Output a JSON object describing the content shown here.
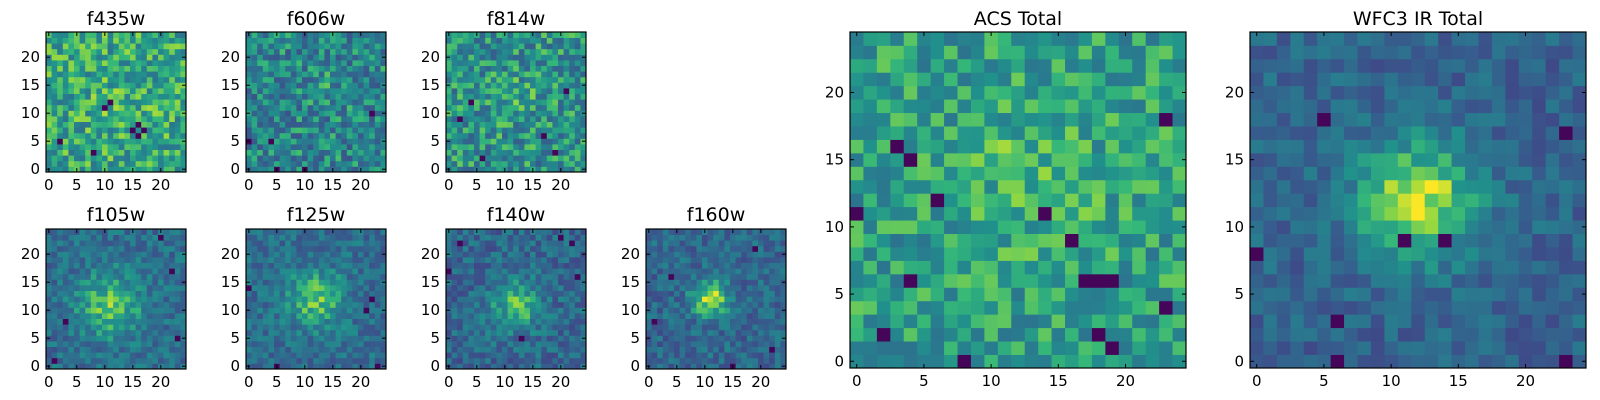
{
  "figure": {
    "description_note": ""
  },
  "chart_data": [
    {
      "type": "heatmap",
      "title": "f435w",
      "grid": [
        25,
        25
      ],
      "colormap": "viridis",
      "xlim": [
        0,
        24
      ],
      "ylim": [
        0,
        24
      ],
      "x_ticks": [
        "0",
        "5",
        "10",
        "15",
        "20"
      ],
      "y_ticks": [
        "0",
        "5",
        "10",
        "15",
        "20"
      ],
      "seed": 11,
      "blob": {
        "cx": 13,
        "cy": 12,
        "sigma": 4,
        "amp": 0.05
      },
      "noise": 0.42,
      "base": 0.68,
      "dark_cells": [
        [
          10,
          11
        ],
        [
          11,
          12
        ],
        [
          15,
          7
        ],
        [
          16,
          8
        ],
        [
          16,
          6
        ],
        [
          17,
          7
        ],
        [
          8,
          3
        ],
        [
          2,
          5
        ]
      ]
    },
    {
      "type": "heatmap",
      "title": "f606w",
      "grid": [
        25,
        25
      ],
      "colormap": "viridis",
      "xlim": [
        0,
        24
      ],
      "ylim": [
        0,
        24
      ],
      "x_ticks": [
        "0",
        "5",
        "10",
        "15",
        "20"
      ],
      "y_ticks": [
        "0",
        "5",
        "10",
        "15",
        "20"
      ],
      "seed": 23,
      "blob": {
        "cx": 13,
        "cy": 14,
        "sigma": 2,
        "amp": 0.1
      },
      "noise": 0.45,
      "base": 0.55,
      "dark_cells": [
        [
          5,
          0
        ],
        [
          10,
          0
        ],
        [
          4,
          5
        ],
        [
          22,
          10
        ],
        [
          0,
          5
        ]
      ]
    },
    {
      "type": "heatmap",
      "title": "f814w",
      "grid": [
        25,
        25
      ],
      "colormap": "viridis",
      "xlim": [
        0,
        24
      ],
      "ylim": [
        0,
        24
      ],
      "x_ticks": [
        "0",
        "5",
        "10",
        "15",
        "20"
      ],
      "y_ticks": [
        "0",
        "5",
        "10",
        "15",
        "20"
      ],
      "seed": 37,
      "blob": {
        "cx": 12,
        "cy": 13,
        "sigma": 3,
        "amp": 0.08
      },
      "noise": 0.45,
      "base": 0.6,
      "dark_cells": [
        [
          4,
          12
        ],
        [
          21,
          14
        ],
        [
          17,
          6
        ],
        [
          6,
          2
        ],
        [
          2,
          9
        ],
        [
          19,
          3
        ]
      ]
    },
    {
      "type": "heatmap",
      "title": "f105w",
      "grid": [
        25,
        25
      ],
      "colormap": "viridis",
      "xlim": [
        0,
        24
      ],
      "ylim": [
        0,
        24
      ],
      "x_ticks": [
        "0",
        "5",
        "10",
        "15",
        "20"
      ],
      "y_ticks": [
        "0",
        "5",
        "10",
        "15",
        "20"
      ],
      "seed": 41,
      "blob": {
        "cx": 11,
        "cy": 11,
        "sigma": 4,
        "amp": 0.35
      },
      "noise": 0.3,
      "base": 0.45,
      "dark_cells": [
        [
          20,
          23
        ],
        [
          3,
          8
        ],
        [
          1,
          1
        ],
        [
          23,
          5
        ],
        [
          22,
          17
        ]
      ]
    },
    {
      "type": "heatmap",
      "title": "f125w",
      "grid": [
        25,
        25
      ],
      "colormap": "viridis",
      "xlim": [
        0,
        24
      ],
      "ylim": [
        0,
        24
      ],
      "x_ticks": [
        "0",
        "5",
        "10",
        "15",
        "20"
      ],
      "y_ticks": [
        "0",
        "5",
        "10",
        "15",
        "20"
      ],
      "seed": 53,
      "blob": {
        "cx": 12,
        "cy": 12,
        "sigma": 3.5,
        "amp": 0.35
      },
      "noise": 0.3,
      "base": 0.45,
      "dark_cells": [
        [
          5,
          0
        ],
        [
          23,
          0
        ],
        [
          22,
          12
        ],
        [
          21,
          10
        ],
        [
          0,
          14
        ]
      ]
    },
    {
      "type": "heatmap",
      "title": "f140w",
      "grid": [
        25,
        25
      ],
      "colormap": "viridis",
      "xlim": [
        0,
        24
      ],
      "ylim": [
        0,
        24
      ],
      "x_ticks": [
        "0",
        "5",
        "10",
        "15",
        "20"
      ],
      "y_ticks": [
        "0",
        "5",
        "10",
        "15",
        "20"
      ],
      "seed": 67,
      "blob": {
        "cx": 12,
        "cy": 11,
        "sigma": 3.2,
        "amp": 0.35
      },
      "noise": 0.32,
      "base": 0.42,
      "dark_cells": [
        [
          13,
          5
        ],
        [
          20,
          23
        ],
        [
          22,
          22
        ],
        [
          2,
          22
        ],
        [
          0,
          17
        ],
        [
          23,
          16
        ]
      ]
    },
    {
      "type": "heatmap",
      "title": "f160w",
      "grid": [
        25,
        25
      ],
      "colormap": "viridis",
      "xlim": [
        0,
        24
      ],
      "ylim": [
        0,
        24
      ],
      "x_ticks": [
        "0",
        "5",
        "10",
        "15",
        "20"
      ],
      "y_ticks": [
        "0",
        "5",
        "10",
        "15",
        "20"
      ],
      "seed": 79,
      "blob": {
        "cx": 11,
        "cy": 12,
        "sigma": 2.3,
        "amp": 0.5
      },
      "noise": 0.3,
      "base": 0.42,
      "dark_cells": [
        [
          15,
          0
        ],
        [
          19,
          21
        ],
        [
          4,
          16
        ],
        [
          1,
          8
        ],
        [
          22,
          3
        ]
      ]
    },
    {
      "type": "heatmap",
      "title": "ACS Total",
      "grid": [
        25,
        25
      ],
      "colormap": "viridis",
      "xlim": [
        0,
        24
      ],
      "ylim": [
        0,
        24
      ],
      "x_ticks": [
        "0",
        "5",
        "10",
        "15",
        "20"
      ],
      "y_ticks": [
        "0",
        "5",
        "10",
        "15",
        "20"
      ],
      "seed": 97,
      "blob": {
        "cx": 13,
        "cy": 14,
        "sigma": 4,
        "amp": 0.1
      },
      "noise": 0.35,
      "base": 0.65,
      "dark_cells": [
        [
          3,
          16
        ],
        [
          4,
          15
        ],
        [
          8,
          0
        ],
        [
          16,
          9
        ],
        [
          19,
          1
        ],
        [
          19,
          6
        ],
        [
          18,
          6
        ],
        [
          17,
          6
        ],
        [
          23,
          4
        ],
        [
          23,
          18
        ],
        [
          14,
          11
        ],
        [
          0,
          11
        ],
        [
          4,
          6
        ],
        [
          6,
          12
        ],
        [
          2,
          2
        ],
        [
          18,
          2
        ]
      ]
    },
    {
      "type": "heatmap",
      "title": "WFC3 IR Total",
      "grid": [
        25,
        25
      ],
      "colormap": "viridis",
      "xlim": [
        0,
        24
      ],
      "ylim": [
        0,
        24
      ],
      "x_ticks": [
        "0",
        "5",
        "10",
        "15",
        "20"
      ],
      "y_ticks": [
        "0",
        "5",
        "10",
        "15",
        "20"
      ],
      "seed": 131,
      "blob": {
        "cx": 12,
        "cy": 12,
        "sigma": 3.2,
        "amp": 0.55
      },
      "noise": 0.25,
      "base": 0.4,
      "dark_cells": [
        [
          5,
          18
        ],
        [
          6,
          0
        ],
        [
          23,
          0
        ],
        [
          0,
          8
        ],
        [
          23,
          17
        ],
        [
          11,
          9
        ],
        [
          14,
          9
        ],
        [
          6,
          3
        ]
      ]
    }
  ]
}
